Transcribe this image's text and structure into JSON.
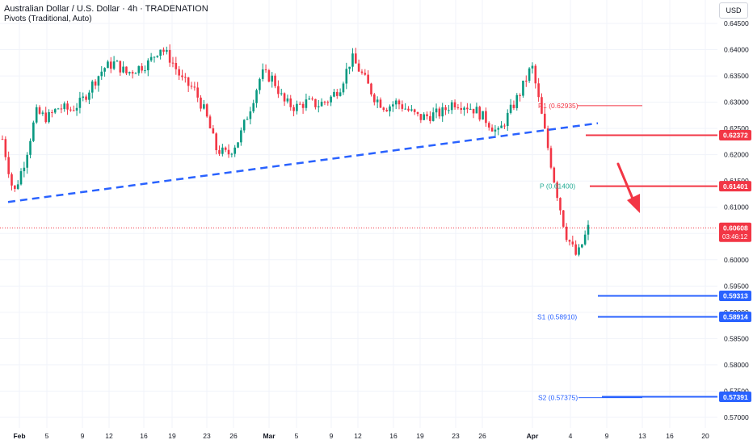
{
  "header": {
    "title": "Australian Dollar / U.S. Dollar · 4h · TRADENATION",
    "subtitle": "Pivots (Traditional, Auto)",
    "currency": "USD"
  },
  "chart_data": {
    "type": "candlestick",
    "symbol": "AUDUSD",
    "timeframe": "4h",
    "ylim": [
      0.5675,
      0.646
    ],
    "y_ticks": [
      0.57,
      0.575,
      0.58,
      0.585,
      0.59,
      0.595,
      0.6,
      0.605,
      0.61,
      0.615,
      0.62,
      0.625,
      0.63,
      0.635,
      0.64,
      0.645
    ],
    "y_tick_labels": [
      "0.57000",
      "0.57500",
      "0.58000",
      "0.58500",
      "0.59000",
      "0.59500",
      "0.60000",
      "0.60500",
      "0.61000",
      "0.61500",
      "0.62000",
      "0.62500",
      "0.63000",
      "0.63500",
      "0.64000",
      "0.64500"
    ],
    "x_ticks": [
      {
        "label": "Feb",
        "bold": true
      },
      {
        "label": "5"
      },
      {
        "label": "9"
      },
      {
        "label": "12"
      },
      {
        "label": "16"
      },
      {
        "label": "19"
      },
      {
        "label": "23"
      },
      {
        "label": "26"
      },
      {
        "label": "Mar",
        "bold": true
      },
      {
        "label": "5"
      },
      {
        "label": "9"
      },
      {
        "label": "12"
      },
      {
        "label": "16"
      },
      {
        "label": "19"
      },
      {
        "label": "23"
      },
      {
        "label": "26"
      },
      {
        "label": "Apr",
        "bold": true
      },
      {
        "label": "4"
      },
      {
        "label": "9"
      },
      {
        "label": "13"
      },
      {
        "label": "16"
      },
      {
        "label": "20"
      }
    ],
    "price_path": [
      0.623,
      0.6125,
      0.619,
      0.628,
      0.627,
      0.629,
      0.6285,
      0.63,
      0.6335,
      0.6365,
      0.6375,
      0.6355,
      0.6365,
      0.6375,
      0.6405,
      0.638,
      0.634,
      0.6325,
      0.628,
      0.621,
      0.62,
      0.623,
      0.629,
      0.6355,
      0.6345,
      0.63,
      0.629,
      0.63,
      0.6295,
      0.6305,
      0.633,
      0.6385,
      0.635,
      0.631,
      0.629,
      0.63,
      0.6285,
      0.627,
      0.6275,
      0.628,
      0.63,
      0.6295,
      0.6285,
      0.6265,
      0.624,
      0.628,
      0.632,
      0.637,
      0.626,
      0.615,
      0.605,
      0.6005,
      0.606
    ],
    "candle_count": 190,
    "current_price": {
      "value": 0.60608,
      "label": "0.60608",
      "countdown": "03:46:12",
      "color": "#f23645"
    },
    "horizontal_levels": [
      {
        "value": 0.62372,
        "label": "0.62372",
        "color": "#f23645"
      },
      {
        "value": 0.61401,
        "label": "0.61401",
        "color": "#f23645"
      },
      {
        "value": 0.59313,
        "label": "0.59313",
        "color": "#2962ff"
      },
      {
        "value": 0.58914,
        "label": "0.58914",
        "color": "#2962ff"
      },
      {
        "value": 0.57391,
        "label": "0.57391",
        "color": "#2962ff"
      }
    ],
    "pivots": [
      {
        "name": "R1",
        "label": "R1 (0.62935)",
        "value": 0.62935,
        "color": "#f23645"
      },
      {
        "name": "P",
        "label": "P (0.61400)",
        "value": 0.614,
        "color": "#22ab94"
      },
      {
        "name": "S1",
        "label": "S1 (0.58910)",
        "value": 0.5891,
        "color": "#2962ff"
      },
      {
        "name": "S2",
        "label": "S2 (0.57375)",
        "value": 0.57375,
        "color": "#2962ff"
      }
    ],
    "trendline": {
      "start": 0.611,
      "end": 0.626,
      "color": "#2962ff",
      "style": "dashed"
    },
    "annotation_arrow": {
      "direction": "down",
      "color": "#f23645"
    },
    "colors": {
      "up": "#089981",
      "down": "#f23645",
      "grid": "#f0f3fa"
    },
    "grid": true
  }
}
